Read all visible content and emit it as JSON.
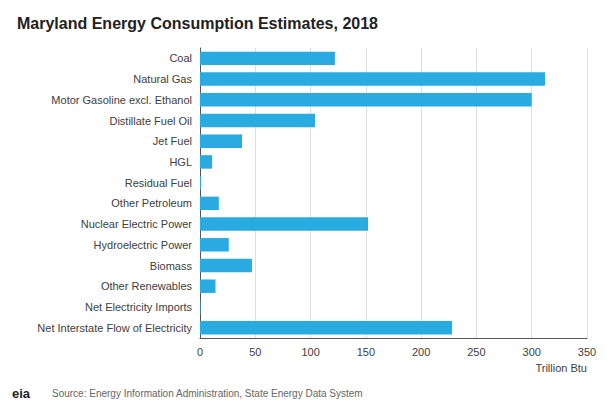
{
  "chart_data": {
    "type": "bar",
    "orientation": "horizontal",
    "title": "Maryland Energy Consumption Estimates, 2018",
    "categories": [
      "Net Interstate Flow of Electricity",
      "Net Electricity Imports",
      "Other Renewables",
      "Biomass",
      "Hydroelectric Power",
      "Nuclear Electric Power",
      "Other Petroleum",
      "Residual Fuel",
      "HGL",
      "Jet Fuel",
      "Distillate Fuel Oil",
      "Motor Gasoline excl. Ethanol",
      "Natural Gas",
      "Coal"
    ],
    "values": [
      228,
      0.5,
      14,
      47,
      26,
      152,
      17,
      1,
      11,
      38,
      104,
      300,
      312,
      122
    ],
    "color": "#29abe2",
    "xlabel": "Trillion Btu",
    "xlim": [
      0,
      350
    ],
    "xticks": [
      0,
      50,
      100,
      150,
      200,
      250,
      300,
      350
    ],
    "grid": true,
    "annotations": [
      "eia",
      "Source: Energy Information Administration, State Energy Data System"
    ]
  }
}
